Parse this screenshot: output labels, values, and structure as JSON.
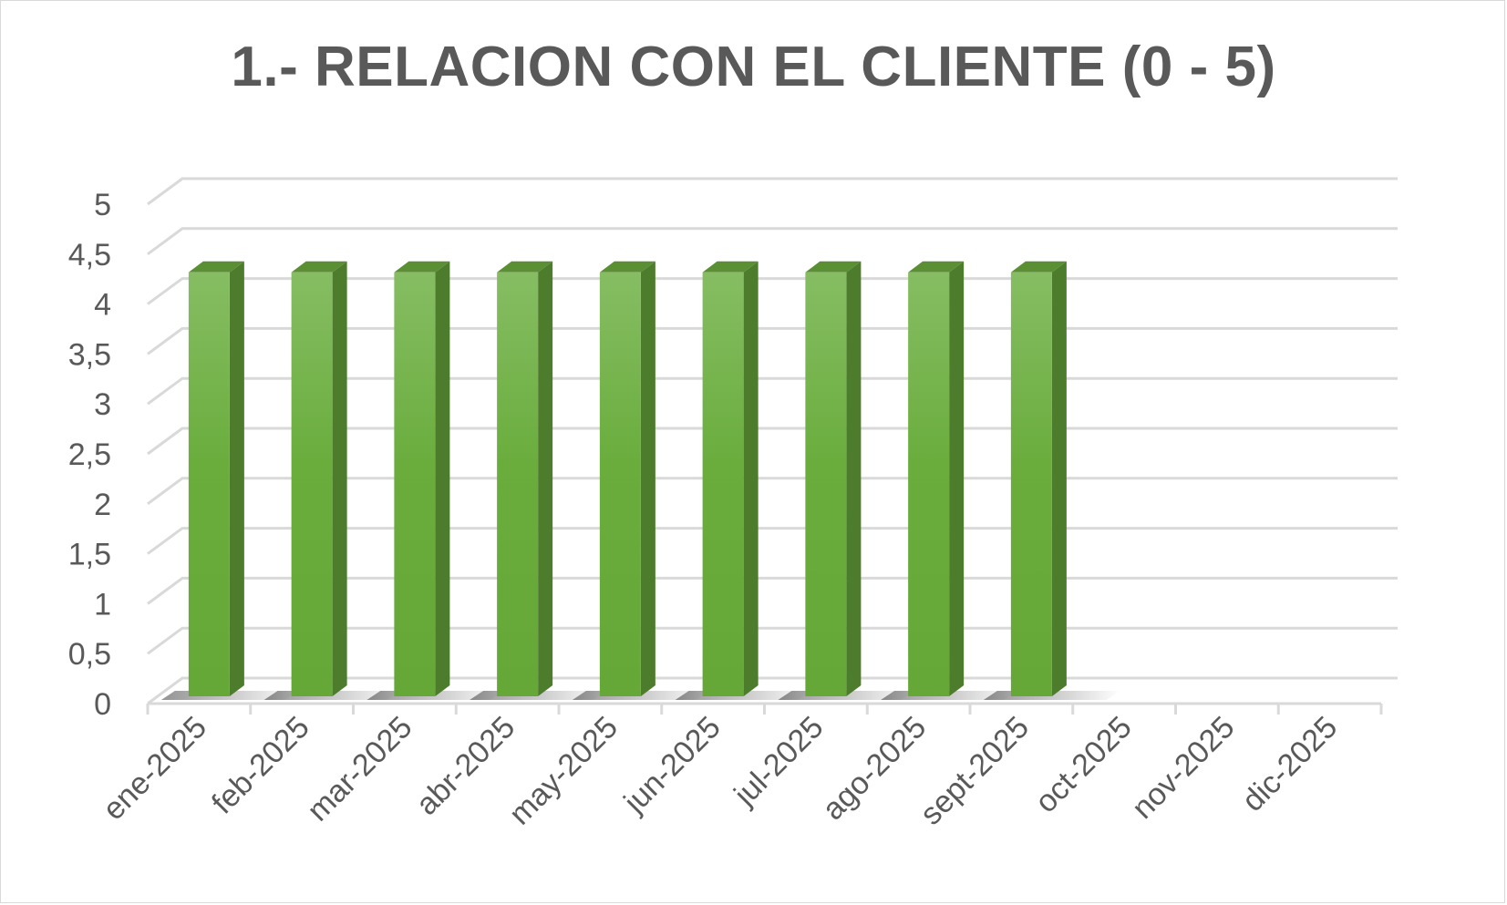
{
  "chart_data": {
    "type": "bar",
    "style": "3d-clustered-column",
    "title": "1.- RELACION CON EL CLIENTE (0 - 5)",
    "xlabel": "",
    "ylabel": "",
    "categories": [
      "ene-2025",
      "feb-2025",
      "mar-2025",
      "abr-2025",
      "may-2025",
      "jun-2025",
      "jul-2025",
      "ago-2025",
      "sept-2025",
      "oct-2025",
      "nov-2025",
      "dic-2025"
    ],
    "values": [
      4.5,
      4.5,
      4.5,
      4.5,
      4.5,
      4.5,
      4.5,
      4.5,
      4.5,
      null,
      null,
      null
    ],
    "ylim": [
      0,
      5
    ],
    "yticks": [
      "0",
      "0,5",
      "1",
      "1,5",
      "2",
      "2,5",
      "3",
      "3,5",
      "4",
      "4,5",
      "5"
    ],
    "grid": true,
    "legend": "none",
    "colors": {
      "bar_front_top": "#86bd63",
      "bar_front_bottom": "#66a838",
      "bar_side": "#4d7d2c",
      "bar_top": "#5a8f34",
      "gridline": "#d9d9d9",
      "text": "#595959"
    }
  }
}
